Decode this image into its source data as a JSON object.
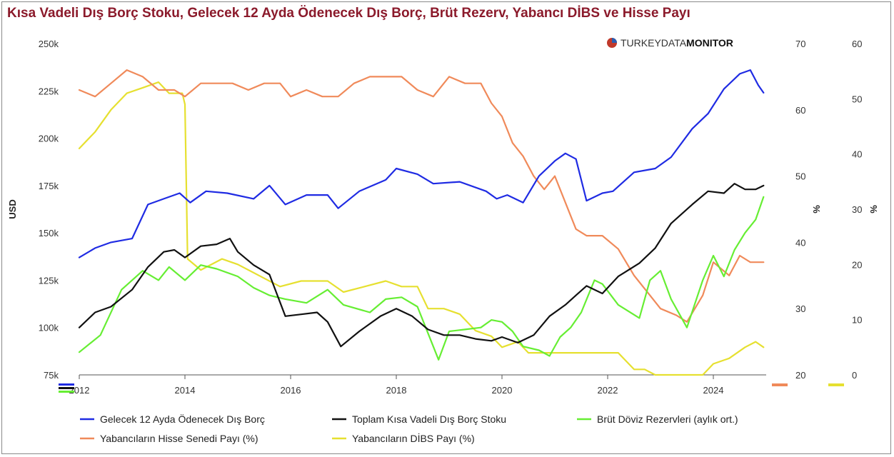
{
  "title": "Kısa Vadeli Dış Borç Stoku, Gelecek 12 Ayda Ödenecek Dış Borç, Brüt Rezerv, Yabancı DİBS ve Hisse Payı",
  "brand": {
    "light": "TURKEYDATA",
    "bold": "MONITOR"
  },
  "colors": {
    "blue": "#1f2be3",
    "black": "#111111",
    "green": "#66ee33",
    "orange": "#f08a5a",
    "yellow": "#e6e030"
  },
  "chart_data": {
    "type": "line",
    "x_axis": {
      "tick_values": [
        2012,
        2014,
        2016,
        2018,
        2020,
        2022,
        2024
      ],
      "tick_labels": [
        "2012",
        "2014",
        "2016",
        "2018",
        "2020",
        "2022",
        "2024"
      ],
      "range": [
        2012,
        2025
      ]
    },
    "y_axes": [
      {
        "id": "usd",
        "title": "USD",
        "side": "left",
        "range": [
          75000,
          250000
        ],
        "tick_values": [
          75000,
          100000,
          125000,
          150000,
          175000,
          200000,
          225000,
          250000
        ],
        "tick_labels": [
          "75k",
          "100k",
          "125k",
          "150k",
          "175k",
          "200k",
          "225k",
          "250k"
        ]
      },
      {
        "id": "pct1",
        "title": "%",
        "side": "right",
        "range": [
          20,
          70
        ],
        "tick_values": [
          20,
          30,
          40,
          50,
          60,
          70
        ],
        "tick_labels": [
          "20",
          "30",
          "40",
          "50",
          "60",
          "70"
        ]
      },
      {
        "id": "pct2",
        "title": "%",
        "side": "right",
        "range": [
          0,
          60
        ],
        "tick_values": [
          0,
          10,
          20,
          30,
          40,
          50,
          60
        ],
        "tick_labels": [
          "0",
          "10",
          "20",
          "30",
          "40",
          "50",
          "60"
        ]
      }
    ],
    "grid": false,
    "legend": "bottom",
    "series": [
      {
        "name": "Gelecek 12 Ayda Ödenecek Dış Borç",
        "axis": "usd",
        "color": "#1f2be3",
        "x": [
          2012.0,
          2012.3,
          2012.6,
          2013.0,
          2013.3,
          2013.6,
          2013.9,
          2014.1,
          2014.4,
          2014.8,
          2015.3,
          2015.6,
          2015.9,
          2016.3,
          2016.7,
          2016.9,
          2017.3,
          2017.8,
          2018.0,
          2018.4,
          2018.7,
          2019.2,
          2019.7,
          2019.9,
          2020.1,
          2020.4,
          2020.7,
          2021.0,
          2021.2,
          2021.4,
          2021.6,
          2021.9,
          2022.1,
          2022.5,
          2022.9,
          2023.2,
          2023.6,
          2023.9,
          2024.2,
          2024.5,
          2024.7,
          2024.85,
          2024.95
        ],
        "y": [
          137000,
          142000,
          145000,
          147000,
          165000,
          168000,
          171000,
          166000,
          172000,
          171000,
          168000,
          175000,
          165000,
          170000,
          170000,
          163000,
          172000,
          178000,
          184000,
          181000,
          176000,
          177000,
          172000,
          168000,
          170000,
          166000,
          180000,
          188000,
          192000,
          189000,
          167000,
          171000,
          172000,
          182000,
          184000,
          190000,
          205000,
          213000,
          226000,
          234000,
          236000,
          228000,
          224000
        ]
      },
      {
        "name": "Toplam Kısa Vadeli Dış Borç Stoku",
        "axis": "usd",
        "color": "#111111",
        "x": [
          2012.0,
          2012.3,
          2012.6,
          2013.0,
          2013.3,
          2013.6,
          2013.8,
          2014.0,
          2014.3,
          2014.6,
          2014.85,
          2015.0,
          2015.3,
          2015.6,
          2015.9,
          2016.2,
          2016.5,
          2016.7,
          2016.95,
          2017.3,
          2017.7,
          2018.0,
          2018.3,
          2018.6,
          2018.9,
          2019.2,
          2019.5,
          2019.8,
          2020.0,
          2020.3,
          2020.6,
          2020.9,
          2021.2,
          2021.4,
          2021.6,
          2021.9,
          2022.2,
          2022.6,
          2022.9,
          2023.2,
          2023.6,
          2023.9,
          2024.2,
          2024.4,
          2024.6,
          2024.8,
          2024.95
        ],
        "y": [
          100000,
          108000,
          111000,
          120000,
          132000,
          140000,
          141000,
          137000,
          143000,
          144000,
          147000,
          140000,
          133000,
          128000,
          106000,
          107000,
          108000,
          103000,
          90000,
          98000,
          106000,
          110000,
          106000,
          99000,
          96000,
          96000,
          94000,
          93000,
          95000,
          92000,
          96000,
          106000,
          112000,
          117000,
          122000,
          118000,
          127000,
          134000,
          142000,
          155000,
          165000,
          172000,
          171000,
          176000,
          173000,
          173000,
          175000
        ]
      },
      {
        "name": "Brüt Döviz Rezervleri (aylık ort.)",
        "axis": "usd",
        "color": "#66ee33",
        "x": [
          2012.0,
          2012.4,
          2012.8,
          2013.2,
          2013.5,
          2013.7,
          2014.0,
          2014.3,
          2014.6,
          2015.0,
          2015.3,
          2015.6,
          2015.9,
          2016.3,
          2016.7,
          2017.0,
          2017.5,
          2017.8,
          2018.1,
          2018.4,
          2018.6,
          2018.8,
          2019.0,
          2019.3,
          2019.6,
          2019.8,
          2020.0,
          2020.2,
          2020.4,
          2020.7,
          2020.9,
          2021.1,
          2021.3,
          2021.5,
          2021.75,
          2021.9,
          2022.2,
          2022.6,
          2022.8,
          2023.0,
          2023.2,
          2023.5,
          2023.8,
          2024.0,
          2024.2,
          2024.4,
          2024.6,
          2024.8,
          2024.95
        ],
        "y": [
          87000,
          96000,
          120000,
          130000,
          125000,
          132000,
          125000,
          133000,
          131000,
          127000,
          121000,
          117000,
          115000,
          113000,
          120000,
          112000,
          108000,
          115000,
          116000,
          111000,
          97000,
          83000,
          98000,
          99000,
          100000,
          104000,
          103000,
          98000,
          90000,
          88000,
          85000,
          95000,
          100000,
          108000,
          125000,
          123000,
          112000,
          105000,
          125000,
          130000,
          115000,
          100000,
          125000,
          138000,
          127000,
          141000,
          150000,
          157000,
          169000
        ]
      },
      {
        "name": "Yabancıların Hisse Senedi Payı (%)",
        "axis": "pct1",
        "color": "#f08a5a",
        "x": [
          2012.0,
          2012.3,
          2012.6,
          2012.9,
          2013.2,
          2013.5,
          2013.8,
          2014.0,
          2014.3,
          2014.6,
          2014.9,
          2015.2,
          2015.5,
          2015.8,
          2016.0,
          2016.3,
          2016.6,
          2016.9,
          2017.2,
          2017.5,
          2017.8,
          2018.1,
          2018.4,
          2018.7,
          2019.0,
          2019.3,
          2019.6,
          2019.8,
          2020.0,
          2020.2,
          2020.4,
          2020.6,
          2020.8,
          2021.0,
          2021.2,
          2021.4,
          2021.6,
          2021.9,
          2022.2,
          2022.5,
          2022.8,
          2023.0,
          2023.3,
          2023.5,
          2023.8,
          2024.0,
          2024.3,
          2024.5,
          2024.7,
          2024.95
        ],
        "y": [
          63,
          62,
          64,
          66,
          65,
          63,
          63,
          62,
          64,
          64,
          64,
          63,
          64,
          64,
          62,
          63,
          62,
          62,
          64,
          65,
          65,
          65,
          63,
          62,
          65,
          64,
          64,
          61,
          59,
          55,
          53,
          50,
          48,
          50,
          46,
          42,
          41,
          41,
          39,
          35,
          32,
          30,
          29,
          28,
          32,
          37,
          35,
          38,
          37,
          37
        ]
      },
      {
        "name": "Yabancıların DİBS Payı (%)",
        "axis": "pct2",
        "color": "#e6e030",
        "x": [
          2012.0,
          2012.3,
          2012.6,
          2012.9,
          2013.2,
          2013.5,
          2013.7,
          2013.95,
          2014.0,
          2014.05,
          2014.3,
          2014.7,
          2015.0,
          2015.4,
          2015.8,
          2016.2,
          2016.7,
          2017.0,
          2017.4,
          2017.8,
          2018.1,
          2018.4,
          2018.6,
          2018.9,
          2019.2,
          2019.5,
          2019.8,
          2020.0,
          2020.3,
          2020.5,
          2020.8,
          2021.1,
          2021.4,
          2021.7,
          2022.0,
          2022.2,
          2022.5,
          2022.7,
          2022.9,
          2023.2,
          2023.5,
          2023.8,
          2024.0,
          2024.3,
          2024.6,
          2024.8,
          2024.95
        ],
        "y": [
          41,
          44,
          48,
          51,
          52,
          53,
          51,
          51,
          49,
          21,
          19,
          21,
          20,
          18,
          16,
          17,
          17,
          15,
          16,
          17,
          16,
          16,
          12,
          12,
          11,
          8,
          7,
          5,
          6,
          4,
          4,
          4,
          4,
          4,
          4,
          4,
          1,
          1,
          0,
          0,
          0,
          0,
          2,
          3,
          5,
          6,
          5
        ]
      }
    ]
  }
}
